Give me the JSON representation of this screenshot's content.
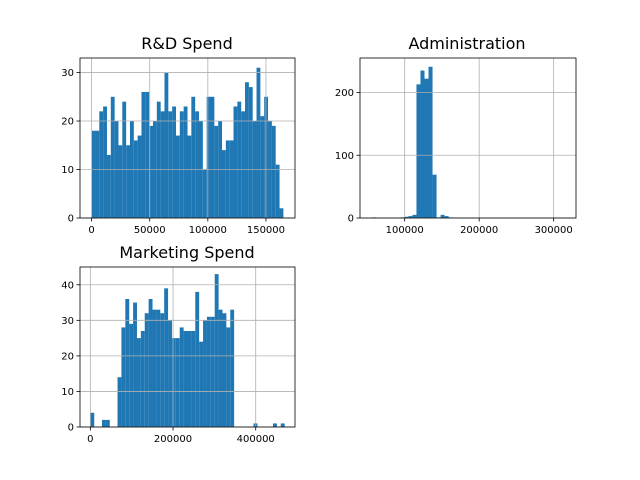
{
  "bar_color": "#1f77b4",
  "grid_color": "#b0b0b0",
  "chart_data": [
    {
      "type": "bar",
      "title": "R&D Spend",
      "xlabel": "",
      "ylabel": "",
      "grid": true,
      "bin_start": 0,
      "bin_width": 3300,
      "values": [
        18,
        18,
        22,
        23,
        13,
        25,
        20,
        15,
        24,
        15,
        20,
        16,
        17,
        26,
        26,
        19,
        20,
        24,
        22,
        30,
        22,
        23,
        17,
        22,
        23,
        17,
        25,
        22,
        20,
        10,
        25,
        25,
        19,
        20,
        14,
        16,
        16,
        23,
        24,
        22,
        28,
        27,
        20,
        31,
        21,
        25,
        20,
        19,
        11,
        2
      ],
      "xlim": [
        -10000,
        175000
      ],
      "ylim": [
        0,
        33
      ],
      "xticks": [
        0,
        50000,
        100000,
        150000
      ],
      "xticklabels": [
        "0",
        "50000",
        "100000",
        "150000"
      ],
      "yticks": [
        0,
        10,
        20,
        30
      ],
      "yticklabels": [
        "0",
        "10",
        "20",
        "30"
      ]
    },
    {
      "type": "bar",
      "title": "Administration",
      "xlabel": "",
      "ylabel": "",
      "grid": true,
      "bin_start": 51000,
      "bin_width": 5400,
      "values": [
        0,
        1,
        0,
        0,
        0,
        0,
        0,
        0,
        1,
        2,
        3,
        5,
        213,
        235,
        222,
        241,
        69,
        1,
        5,
        3,
        1
      ],
      "xlim": [
        40000,
        330000
      ],
      "ylim": [
        0,
        255
      ],
      "xticks": [
        100000,
        200000,
        300000
      ],
      "xticklabels": [
        "100000",
        "200000",
        "300000"
      ],
      "yticks": [
        0,
        100,
        200
      ],
      "yticklabels": [
        "0",
        "100",
        "200"
      ]
    },
    {
      "type": "bar",
      "title": "Marketing Spend",
      "xlabel": "",
      "ylabel": "",
      "grid": true,
      "bin_start": 0,
      "bin_width": 9400,
      "values": [
        4,
        0,
        0,
        2,
        2,
        0,
        0,
        14,
        28,
        36,
        29,
        35,
        25,
        27,
        32,
        36,
        33,
        33,
        32,
        39,
        30,
        25,
        25,
        28,
        27,
        27,
        27,
        38,
        24,
        30,
        31,
        31,
        43,
        33,
        32,
        28,
        33,
        0,
        0,
        0,
        0,
        0,
        1,
        0,
        0,
        0,
        0,
        1,
        0,
        1
      ],
      "xlim": [
        -25000,
        495000
      ],
      "ylim": [
        0,
        45
      ],
      "xticks": [
        0,
        200000,
        400000
      ],
      "xticklabels": [
        "0",
        "200000",
        "400000"
      ],
      "yticks": [
        0,
        10,
        20,
        30,
        40
      ],
      "yticklabels": [
        "0",
        "10",
        "20",
        "30",
        "40"
      ]
    }
  ]
}
